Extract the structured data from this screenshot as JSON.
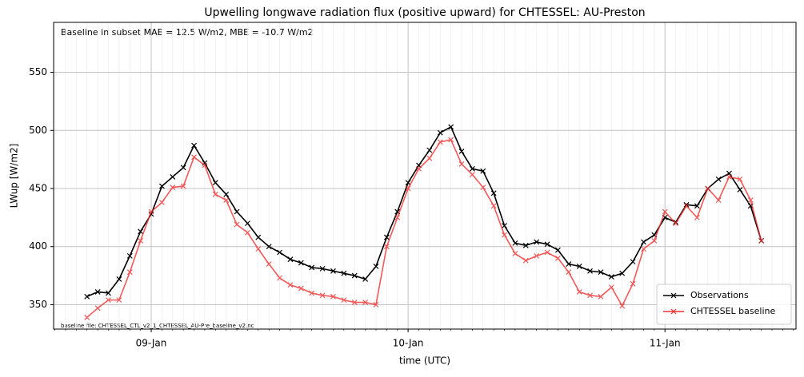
{
  "chart_data": {
    "type": "line",
    "title": "Upwelling longwave radiation flux (positive upward) for CHTESSEL: AU-Preston",
    "annotation": "Baseline in subset MAE = 12.5 W/m2, MBE = -10.7 W/m2",
    "footnote": "baseline file: CHTESSEL_CTL_v2_1_CHTESSEL_AU-Pre_baseline_v2.nc",
    "xlabel": "time (UTC)",
    "ylabel": "LWup [W/m2]",
    "x": [
      8.75,
      8.7917,
      8.8333,
      8.875,
      8.9167,
      8.9583,
      9,
      9.0417,
      9.0833,
      9.125,
      9.1667,
      9.2083,
      9.25,
      9.2917,
      9.3333,
      9.375,
      9.4167,
      9.4583,
      9.5,
      9.5417,
      9.5833,
      9.625,
      9.6667,
      9.7083,
      9.75,
      9.7917,
      9.8333,
      9.875,
      9.9167,
      9.9583,
      10,
      10.0417,
      10.0833,
      10.125,
      10.1667,
      10.2083,
      10.25,
      10.2917,
      10.3333,
      10.375,
      10.4167,
      10.4583,
      10.5,
      10.5417,
      10.5833,
      10.625,
      10.6667,
      10.7083,
      10.75,
      10.7917,
      10.8333,
      10.875,
      10.9167,
      10.9583,
      11,
      11.0417,
      11.0833,
      11.125,
      11.1667,
      11.2083,
      11.25,
      11.2917,
      11.3333,
      11.375
    ],
    "series": [
      {
        "name": "Observations",
        "color": "#000000",
        "values": [
          357,
          361,
          360,
          372,
          392,
          413,
          428,
          452,
          460,
          468,
          487,
          472,
          455,
          445,
          430,
          420,
          408,
          400,
          395,
          389,
          386,
          382,
          381,
          379,
          377,
          375,
          372,
          383,
          408,
          430,
          455,
          470,
          483,
          498,
          503,
          482,
          467,
          465,
          446,
          418,
          403,
          401,
          404,
          402,
          397,
          385,
          383,
          379,
          378,
          374,
          377,
          387,
          404,
          410,
          425,
          421,
          436,
          435,
          450,
          458,
          463,
          449,
          435,
          405
        ]
      },
      {
        "name": "CHTESSEL baseline",
        "color": "#f03030",
        "values": [
          339,
          347,
          354,
          354,
          378,
          405,
          430,
          438,
          451,
          452,
          477,
          470,
          445,
          440,
          419,
          412,
          398,
          385,
          373,
          367,
          364,
          360,
          358,
          357,
          354,
          352,
          352,
          350,
          400,
          425,
          450,
          467,
          476,
          490,
          492,
          471,
          462,
          451,
          435,
          410,
          394,
          388,
          392,
          395,
          390,
          378,
          361,
          358,
          357,
          365,
          349,
          368,
          398,
          405,
          430,
          420,
          435,
          425,
          450,
          440,
          460,
          458,
          440,
          405
        ]
      }
    ],
    "xlim": [
      8.62,
      11.51
    ],
    "ylim": [
      329,
      593
    ],
    "xticks": [
      {
        "value": 9,
        "label": "09-Jan"
      },
      {
        "value": 10,
        "label": "10-Jan"
      },
      {
        "value": 11,
        "label": "11-Jan"
      }
    ],
    "yticks": [
      350,
      400,
      450,
      500,
      550
    ],
    "grid": true,
    "legend": "lower right"
  }
}
